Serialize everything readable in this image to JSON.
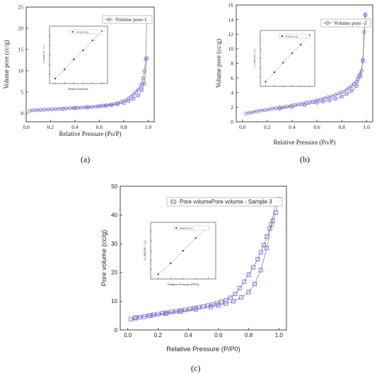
{
  "colors": {
    "series": "#6f6fe8",
    "axis": "#333333",
    "line": "#777777",
    "inset_marker": "#333333"
  },
  "panels": [
    {
      "caption": "(a)"
    },
    {
      "caption": "(b)"
    },
    {
      "caption": "(c)"
    }
  ],
  "chart_data": [
    {
      "type": "scatter",
      "title": "",
      "xlabel": "Relative Pressure (Po/P)",
      "ylabel": "Volume pore (cc/g)",
      "xlim": [
        0,
        1.05
      ],
      "ylim": [
        -2,
        25
      ],
      "xticks": [
        "0.0",
        "0.2",
        "0.4",
        "0.6",
        "0.8",
        "1.0"
      ],
      "yticks": [
        "0",
        "5",
        "10",
        "15",
        "20",
        "25"
      ],
      "legend": "Volume pore-1",
      "legend_position": "top-right",
      "series": [
        {
          "name": "Volume pore-1",
          "marker": "circle",
          "x": [
            0.03,
            0.06,
            0.09,
            0.12,
            0.15,
            0.18,
            0.21,
            0.24,
            0.27,
            0.3,
            0.33,
            0.36,
            0.39,
            0.42,
            0.45,
            0.48,
            0.51,
            0.54,
            0.57,
            0.6,
            0.63,
            0.66,
            0.69,
            0.72,
            0.75,
            0.78,
            0.81,
            0.84,
            0.86,
            0.88,
            0.9,
            0.92,
            0.94,
            0.95,
            0.96,
            0.97,
            0.98,
            0.99
          ],
          "y": [
            0.6,
            0.7,
            0.75,
            0.8,
            0.85,
            0.9,
            0.95,
            1.0,
            1.05,
            1.1,
            1.15,
            1.2,
            1.25,
            1.3,
            1.35,
            1.4,
            1.45,
            1.5,
            1.6,
            1.7,
            1.8,
            1.9,
            2.0,
            2.2,
            2.4,
            2.7,
            3.0,
            3.5,
            3.9,
            4.4,
            5.0,
            5.6,
            6.4,
            7.0,
            8.2,
            10.0,
            12.8,
            22.5
          ]
        },
        {
          "name": "",
          "marker": "circle",
          "x": [
            0.3,
            0.4,
            0.5,
            0.6,
            0.65,
            0.7,
            0.75,
            0.8,
            0.84,
            0.88,
            0.92,
            0.95,
            0.97,
            0.99
          ],
          "y": [
            1.05,
            1.25,
            1.45,
            1.65,
            1.8,
            1.95,
            2.15,
            2.45,
            2.9,
            3.4,
            4.2,
            5.5,
            7.0,
            13.0
          ]
        }
      ],
      "inset": {
        "xlabel": "Relative Pressure",
        "ylabel": "1/ [ W((Po/P) - 1) ]",
        "legend": "1/[W(Po/P)-1)]",
        "x": [
          0.05,
          0.1,
          0.15,
          0.2,
          0.25,
          0.3
        ],
        "y": [
          0.15,
          0.26,
          0.38,
          0.49,
          0.61,
          0.72
        ]
      }
    },
    {
      "type": "scatter",
      "title": "",
      "xlabel": "Relative Pressure (Po/P)",
      "ylabel": "Volume pore (cc/g)",
      "xlim": [
        -0.05,
        1.05
      ],
      "ylim": [
        0,
        16
      ],
      "xticks": [
        "0.0",
        "0.2",
        "0.4",
        "0.6",
        "0.8",
        "1.0"
      ],
      "yticks": [
        "0",
        "2",
        "4",
        "6",
        "8",
        "10",
        "12",
        "14",
        "16"
      ],
      "legend": "Volume pore -2",
      "legend_position": "top-right",
      "series": [
        {
          "name": "Volume pore -2",
          "marker": "circle",
          "x": [
            0.03,
            0.06,
            0.09,
            0.12,
            0.15,
            0.18,
            0.21,
            0.24,
            0.27,
            0.3,
            0.33,
            0.36,
            0.39,
            0.42,
            0.45,
            0.48,
            0.51,
            0.54,
            0.57,
            0.6,
            0.63,
            0.66,
            0.69,
            0.72,
            0.75,
            0.78,
            0.81,
            0.84,
            0.86,
            0.88,
            0.9,
            0.92,
            0.93,
            0.94,
            0.95,
            0.96,
            0.97,
            0.98,
            0.99
          ],
          "y": [
            1.15,
            1.25,
            1.35,
            1.45,
            1.55,
            1.6,
            1.7,
            1.8,
            1.85,
            1.95,
            2.0,
            2.1,
            2.2,
            2.3,
            2.4,
            2.5,
            2.6,
            2.7,
            2.8,
            2.95,
            3.05,
            3.2,
            3.35,
            3.5,
            3.7,
            3.9,
            4.1,
            4.4,
            4.6,
            4.9,
            5.2,
            5.5,
            5.9,
            6.3,
            6.6,
            7.0,
            8.5,
            12.3,
            14.7
          ]
        },
        {
          "name": "",
          "marker": "circle",
          "x": [
            0.3,
            0.4,
            0.5,
            0.6,
            0.65,
            0.7,
            0.75,
            0.8,
            0.84,
            0.88,
            0.92,
            0.95,
            0.97,
            0.99
          ],
          "y": [
            1.8,
            2.05,
            2.3,
            2.6,
            2.75,
            2.95,
            3.15,
            3.45,
            3.8,
            4.25,
            4.9,
            6.2,
            8.3,
            14.6
          ]
        }
      ],
      "inset": {
        "xlabel": "",
        "ylabel": "1/ [ W((Po/P) - 1) ]",
        "legend": "1/[W(Po/P)-1)]",
        "x": [
          0.05,
          0.1,
          0.15,
          0.2,
          0.25,
          0.3
        ],
        "y": [
          0.14,
          0.26,
          0.38,
          0.5,
          0.61,
          0.73
        ]
      }
    },
    {
      "type": "scatter",
      "title": "",
      "xlabel": "Relative Pressure (P/P0)",
      "ylabel": "Pore volume (cc/g)",
      "xlim": [
        -0.05,
        1.05
      ],
      "ylim": [
        0,
        50
      ],
      "xticks": [
        "0.0",
        "0.2",
        "0.4",
        "0.6",
        "0.8",
        "1.0"
      ],
      "yticks": [
        "0",
        "10",
        "20",
        "30",
        "40",
        "50"
      ],
      "legend": "Pore volumePore volume - Sample 3",
      "legend_position": "top-right",
      "series": [
        {
          "name": "Pore volumePore volume - Sample 3",
          "marker": "square",
          "x": [
            0.02,
            0.05,
            0.08,
            0.11,
            0.14,
            0.17,
            0.2,
            0.23,
            0.26,
            0.29,
            0.32,
            0.35,
            0.38,
            0.41,
            0.44,
            0.47,
            0.5,
            0.53,
            0.56,
            0.59,
            0.62,
            0.65,
            0.68,
            0.71,
            0.74,
            0.77,
            0.8,
            0.83,
            0.86,
            0.88,
            0.9,
            0.92,
            0.94,
            0.96,
            0.98,
            1.0
          ],
          "y": [
            3.8,
            4.1,
            4.4,
            4.7,
            5.0,
            5.3,
            5.5,
            5.8,
            6.0,
            6.3,
            6.5,
            6.8,
            7.0,
            7.3,
            7.6,
            7.9,
            8.2,
            8.5,
            8.9,
            9.3,
            9.8,
            10.4,
            11.2,
            12.6,
            14.5,
            16.8,
            19.3,
            21.8,
            24.6,
            27.0,
            29.5,
            32.5,
            35.3,
            38.0,
            40.8,
            45.5
          ]
        },
        {
          "name": "",
          "marker": "square",
          "x": [
            0.05,
            0.15,
            0.25,
            0.35,
            0.45,
            0.55,
            0.6,
            0.65,
            0.7,
            0.75,
            0.8,
            0.84,
            0.88,
            0.92,
            0.95,
            0.98
          ],
          "y": [
            4.3,
            5.0,
            5.7,
            6.4,
            7.2,
            8.0,
            8.5,
            9.2,
            10.0,
            11.3,
            13.2,
            16.0,
            20.8,
            28.5,
            36.8,
            44.5
          ]
        }
      ],
      "inset": {
        "xlabel": "Relative Pressure (P/P0)",
        "ylabel": "1/ [ W((P0/P) - 1) ]",
        "legend": "1/[W(P0/P)-1)]",
        "x": [
          0.1,
          0.15,
          0.2,
          0.25,
          0.3
        ],
        "y": [
          0.2,
          0.34,
          0.5,
          0.66,
          0.8
        ]
      }
    }
  ]
}
